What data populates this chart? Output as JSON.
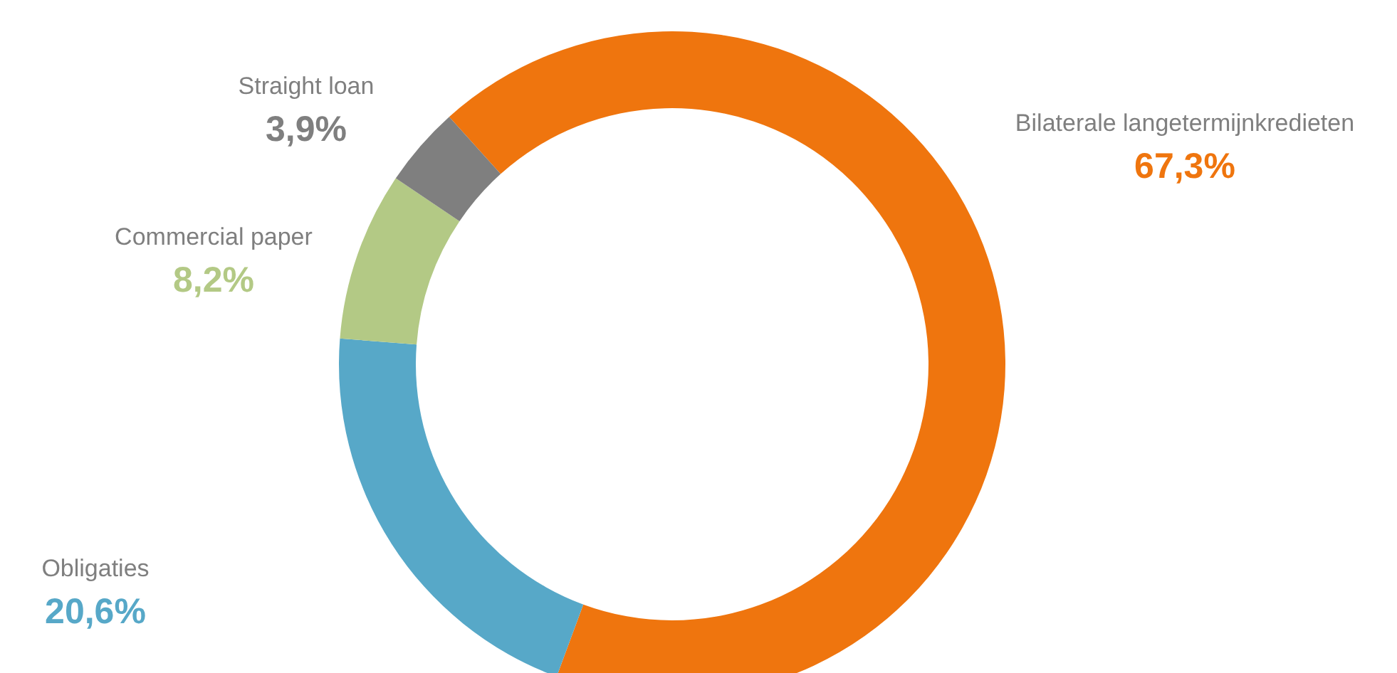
{
  "chart_data": {
    "type": "donut",
    "categories": [
      "Bilaterale langetermijnkredieten",
      "Obligaties",
      "Commercial paper",
      "Straight loan"
    ],
    "values": [
      67.3,
      20.6,
      8.2,
      3.9
    ],
    "colors": [
      "#ef750e",
      "#57a8c8",
      "#b3c985",
      "#7f7f7f"
    ],
    "value_labels": [
      "67,3%",
      "20,6%",
      "8,2%",
      "3,9%"
    ],
    "legend": false
  }
}
